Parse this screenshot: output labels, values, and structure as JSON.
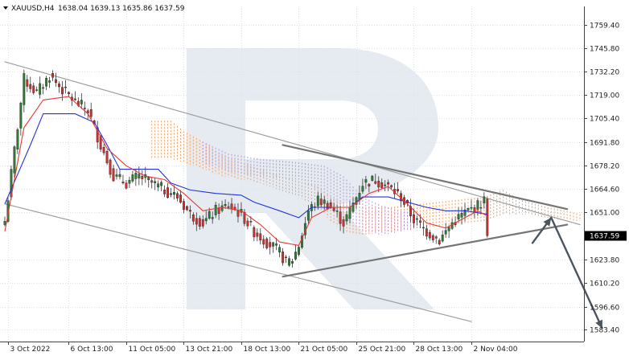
{
  "header": {
    "symbol": "XAUUSD,H4",
    "ohlc": "1638.04 1639.13 1635.86 1637.59"
  },
  "colors": {
    "bull_candle": "#2e7d32",
    "bear_candle": "#d32f2f",
    "tenkan_line": "#e53935",
    "kijun_line": "#2233dd",
    "cloud_bull": "#f0a060",
    "cloud_bear": "#b59ad6",
    "channel_line": "#9e9e9e",
    "triangle_line": "#757575",
    "forecast_arrow": "#4a5560",
    "price_tag_bg": "#000000",
    "grid": "#dfe3e8",
    "watermark": "#e6ebf1"
  },
  "chart_data": {
    "type": "candlestick",
    "instrument": "XAUUSD",
    "timeframe": "H4",
    "last_price": 1637.59,
    "ylim": [
      1576.5,
      1770.0
    ],
    "y_ticks": [
      1759.4,
      1745.8,
      1732.2,
      1719.0,
      1705.4,
      1691.8,
      1678.2,
      1664.6,
      1651.0,
      1637.59,
      1623.8,
      1610.2,
      1596.6,
      1583.4
    ],
    "y_tick_labels": [
      "1759.40",
      "1745.80",
      "1732.20",
      "1719.00",
      "1705.40",
      "1691.80",
      "1678.20",
      "1664.60",
      "1651.00",
      "1637.59",
      "1623.80",
      "1610.20",
      "1596.60",
      "1583.40"
    ],
    "x_count": 180,
    "x_labels": [
      {
        "i": 1,
        "label": "3 Oct 2022"
      },
      {
        "i": 20,
        "label": "6 Oct 13:00"
      },
      {
        "i": 38,
        "label": "11 Oct 05:00"
      },
      {
        "i": 56,
        "label": "13 Oct 21:00"
      },
      {
        "i": 74,
        "label": "18 Oct 13:00"
      },
      {
        "i": 92,
        "label": "21 Oct 05:00"
      },
      {
        "i": 110,
        "label": "25 Oct 21:00"
      },
      {
        "i": 128,
        "label": "28 Oct 13:00"
      },
      {
        "i": 146,
        "label": "2 Nov 04:00"
      }
    ],
    "price_path": [
      [
        0,
        1646
      ],
      [
        6,
        1728
      ],
      [
        10,
        1720
      ],
      [
        14,
        1730
      ],
      [
        18,
        1722
      ],
      [
        22,
        1715
      ],
      [
        26,
        1710
      ],
      [
        30,
        1690
      ],
      [
        34,
        1672
      ],
      [
        38,
        1668
      ],
      [
        42,
        1672
      ],
      [
        46,
        1668
      ],
      [
        50,
        1664
      ],
      [
        54,
        1660
      ],
      [
        58,
        1650
      ],
      [
        62,
        1645
      ],
      [
        66,
        1652
      ],
      [
        70,
        1655
      ],
      [
        74,
        1650
      ],
      [
        78,
        1640
      ],
      [
        82,
        1634
      ],
      [
        86,
        1628
      ],
      [
        88,
        1622
      ],
      [
        90,
        1624
      ],
      [
        92,
        1632
      ],
      [
        95,
        1652
      ],
      [
        98,
        1658
      ],
      [
        101,
        1656
      ],
      [
        104,
        1650
      ],
      [
        106,
        1645
      ],
      [
        108,
        1652
      ],
      [
        112,
        1668
      ],
      [
        116,
        1670
      ],
      [
        120,
        1666
      ],
      [
        124,
        1660
      ],
      [
        128,
        1647
      ],
      [
        132,
        1640
      ],
      [
        136,
        1635
      ],
      [
        140,
        1645
      ],
      [
        144,
        1651
      ],
      [
        148,
        1655
      ],
      [
        150,
        1658
      ],
      [
        151,
        1637.59
      ]
    ],
    "tenkan_path": [
      [
        0,
        1640
      ],
      [
        6,
        1700
      ],
      [
        12,
        1716
      ],
      [
        20,
        1718
      ],
      [
        26,
        1708
      ],
      [
        32,
        1688
      ],
      [
        38,
        1678
      ],
      [
        44,
        1672
      ],
      [
        50,
        1670
      ],
      [
        56,
        1662
      ],
      [
        62,
        1652
      ],
      [
        68,
        1654
      ],
      [
        74,
        1652
      ],
      [
        80,
        1644
      ],
      [
        86,
        1634
      ],
      [
        92,
        1632
      ],
      [
        96,
        1648
      ],
      [
        102,
        1654
      ],
      [
        108,
        1654
      ],
      [
        114,
        1662
      ],
      [
        120,
        1666
      ],
      [
        126,
        1656
      ],
      [
        132,
        1645
      ],
      [
        138,
        1642
      ],
      [
        144,
        1648
      ],
      [
        148,
        1652
      ],
      [
        151,
        1649
      ]
    ],
    "kijun_path": [
      [
        0,
        1656
      ],
      [
        8,
        1690
      ],
      [
        12,
        1708
      ],
      [
        22,
        1708
      ],
      [
        28,
        1703
      ],
      [
        32,
        1690
      ],
      [
        36,
        1676
      ],
      [
        48,
        1676
      ],
      [
        52,
        1668
      ],
      [
        58,
        1664
      ],
      [
        66,
        1662
      ],
      [
        74,
        1661
      ],
      [
        78,
        1657
      ],
      [
        86,
        1652
      ],
      [
        92,
        1648
      ],
      [
        96,
        1654
      ],
      [
        108,
        1654
      ],
      [
        112,
        1660
      ],
      [
        120,
        1660
      ],
      [
        124,
        1658
      ],
      [
        132,
        1654
      ],
      [
        138,
        1652
      ],
      [
        144,
        1652
      ],
      [
        151,
        1650
      ]
    ],
    "cloud_bull_upper": [
      [
        46,
        1704
      ],
      [
        52,
        1704
      ],
      [
        56,
        1698
      ],
      [
        62,
        1692
      ],
      [
        68,
        1684
      ],
      [
        74,
        1680
      ],
      [
        80,
        1676
      ],
      [
        86,
        1672
      ],
      [
        92,
        1669
      ],
      [
        98,
        1666
      ],
      [
        102,
        1660
      ],
      [
        106,
        1656
      ],
      [
        112,
        1654
      ],
      [
        120,
        1654
      ],
      [
        130,
        1656
      ],
      [
        150,
        1660
      ],
      [
        156,
        1664
      ],
      [
        162,
        1658
      ],
      [
        170,
        1654
      ],
      [
        176,
        1652
      ],
      [
        180,
        1650
      ]
    ],
    "cloud_bull_lower": [
      [
        46,
        1682
      ],
      [
        52,
        1682
      ],
      [
        56,
        1680
      ],
      [
        62,
        1676
      ],
      [
        68,
        1672
      ],
      [
        74,
        1670
      ],
      [
        80,
        1668
      ],
      [
        86,
        1664
      ],
      [
        92,
        1660
      ],
      [
        98,
        1654
      ],
      [
        102,
        1646
      ],
      [
        106,
        1640
      ],
      [
        112,
        1638
      ],
      [
        120,
        1640
      ],
      [
        130,
        1642
      ],
      [
        150,
        1646
      ],
      [
        156,
        1650
      ],
      [
        162,
        1650
      ],
      [
        170,
        1648
      ],
      [
        176,
        1646
      ],
      [
        180,
        1646
      ]
    ],
    "cloud_bear_upper": [
      [
        62,
        1692
      ],
      [
        70,
        1685
      ],
      [
        80,
        1682
      ],
      [
        92,
        1680
      ],
      [
        100,
        1678
      ],
      [
        106,
        1672
      ],
      [
        112,
        1660
      ],
      [
        118,
        1655
      ],
      [
        124,
        1652
      ],
      [
        130,
        1650
      ]
    ],
    "cloud_bear_lower": [
      [
        62,
        1680
      ],
      [
        70,
        1674
      ],
      [
        80,
        1672
      ],
      [
        92,
        1670
      ],
      [
        100,
        1662
      ],
      [
        106,
        1650
      ],
      [
        112,
        1640
      ],
      [
        118,
        1638
      ],
      [
        124,
        1640
      ],
      [
        130,
        1642
      ]
    ],
    "trend_lines": [
      {
        "name": "descending-channel-upper",
        "from": [
          0,
          1738
        ],
        "to": [
          180,
          1644
        ]
      },
      {
        "name": "descending-channel-lower",
        "from": [
          0,
          1656
        ],
        "to": [
          146,
          1588
        ]
      },
      {
        "name": "triangle-upper",
        "from": [
          87,
          1690
        ],
        "to": [
          176,
          1653
        ]
      },
      {
        "name": "triangle-lower",
        "from": [
          87,
          1614
        ],
        "to": [
          176,
          1644
        ]
      }
    ],
    "forecast_path": [
      [
        165,
        1633
      ],
      [
        171,
        1648
      ],
      [
        187,
        1584
      ]
    ]
  }
}
